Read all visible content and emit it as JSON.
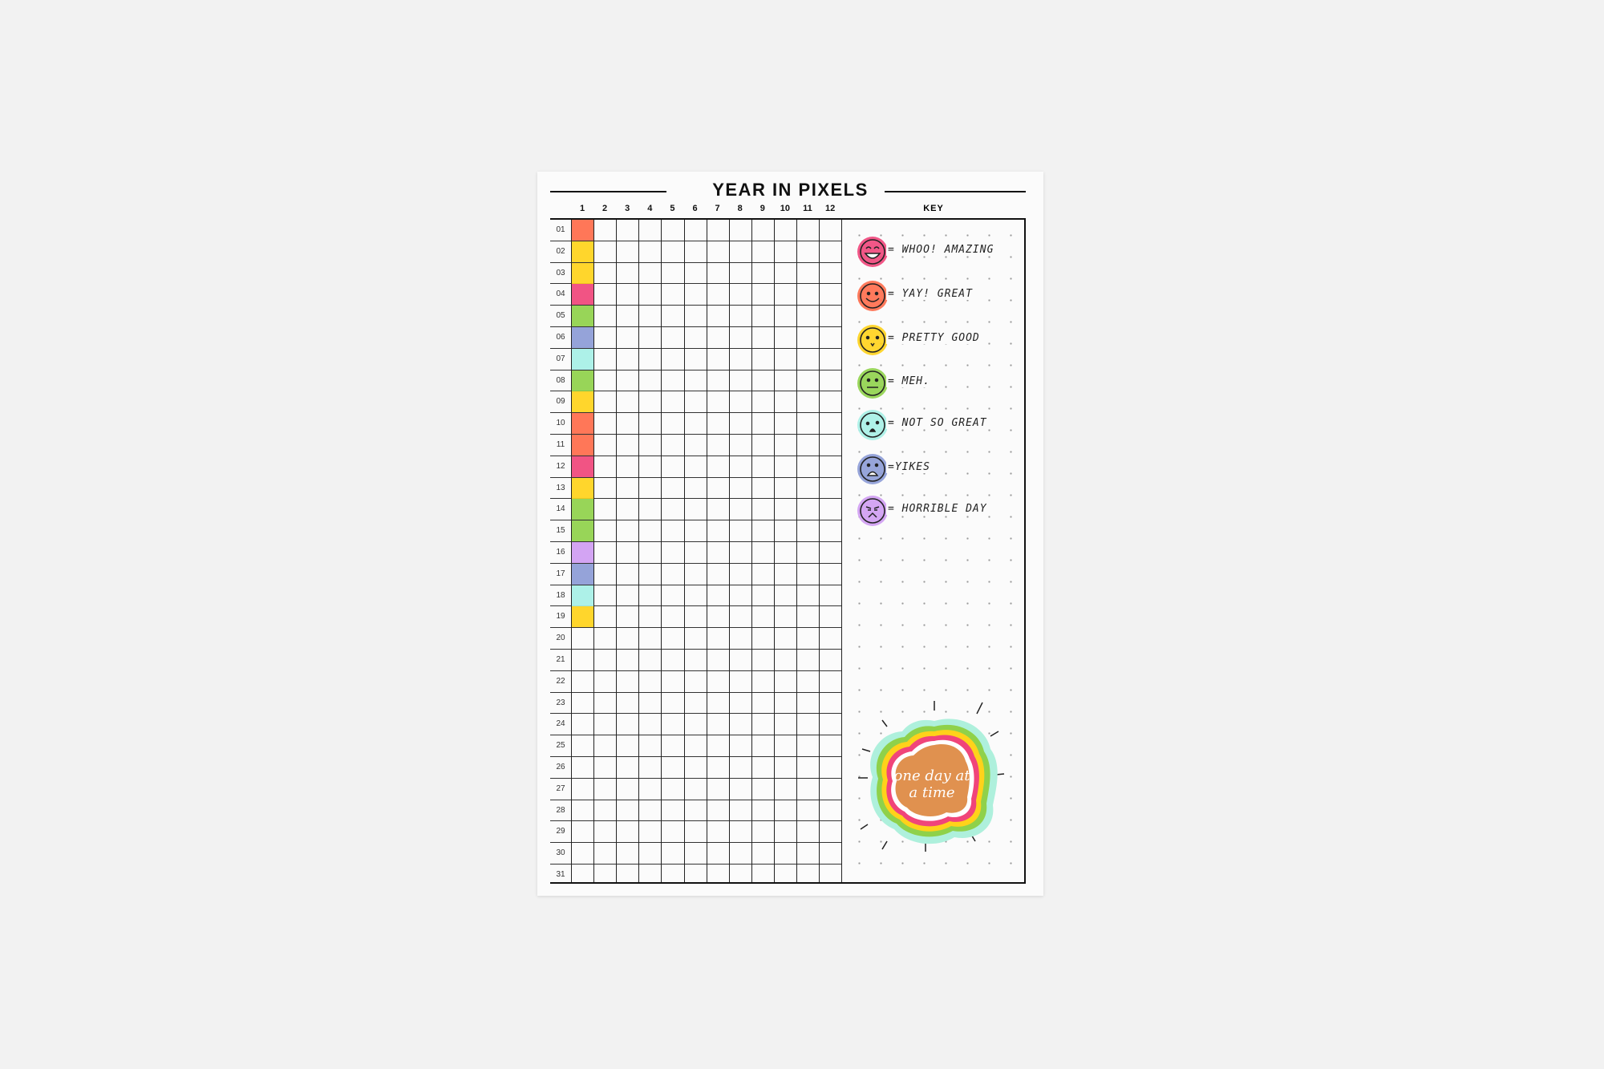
{
  "title": "YEAR IN PIXELS",
  "months": [
    "1",
    "2",
    "3",
    "4",
    "5",
    "6",
    "7",
    "8",
    "9",
    "10",
    "11",
    "12"
  ],
  "days": [
    "01",
    "02",
    "03",
    "04",
    "05",
    "06",
    "07",
    "08",
    "09",
    "10",
    "11",
    "12",
    "13",
    "14",
    "15",
    "16",
    "17",
    "18",
    "19",
    "20",
    "21",
    "22",
    "23",
    "24",
    "25",
    "26",
    "27",
    "28",
    "29",
    "30",
    "31"
  ],
  "key": {
    "heading": "KEY",
    "items": [
      {
        "id": "amazing",
        "label": "= WHOO! AMAZING",
        "color": "#f0457a",
        "face": "grin-icon"
      },
      {
        "id": "great",
        "label": "= YAY! GREAT",
        "color": "#ff6b4a",
        "face": "smile-icon"
      },
      {
        "id": "good",
        "label": "= PRETTY GOOD",
        "color": "#ffd21a",
        "face": "slight-smile-icon"
      },
      {
        "id": "meh",
        "label": "= MEH.",
        "color": "#8fd14a",
        "face": "neutral-icon"
      },
      {
        "id": "notsogreat",
        "label": "= NOT SO GREAT",
        "color": "#a6f0e6",
        "face": "worried-icon"
      },
      {
        "id": "yikes",
        "label": "=YIKES",
        "color": "#8c9bd6",
        "face": "shocked-icon"
      },
      {
        "id": "horrible",
        "label": "= HORRIBLE DAY",
        "color": "#cf9cf2",
        "face": "angry-icon"
      }
    ]
  },
  "pixels": {
    "1": [
      "great",
      "good",
      "good",
      "amazing",
      "meh",
      "yikes",
      "notsogreat",
      "meh",
      "good",
      "great",
      "great",
      "amazing",
      "good",
      "meh",
      "meh",
      "horrible",
      "yikes",
      "notsogreat",
      "good"
    ]
  },
  "sticker": {
    "text": "one day at a time"
  }
}
